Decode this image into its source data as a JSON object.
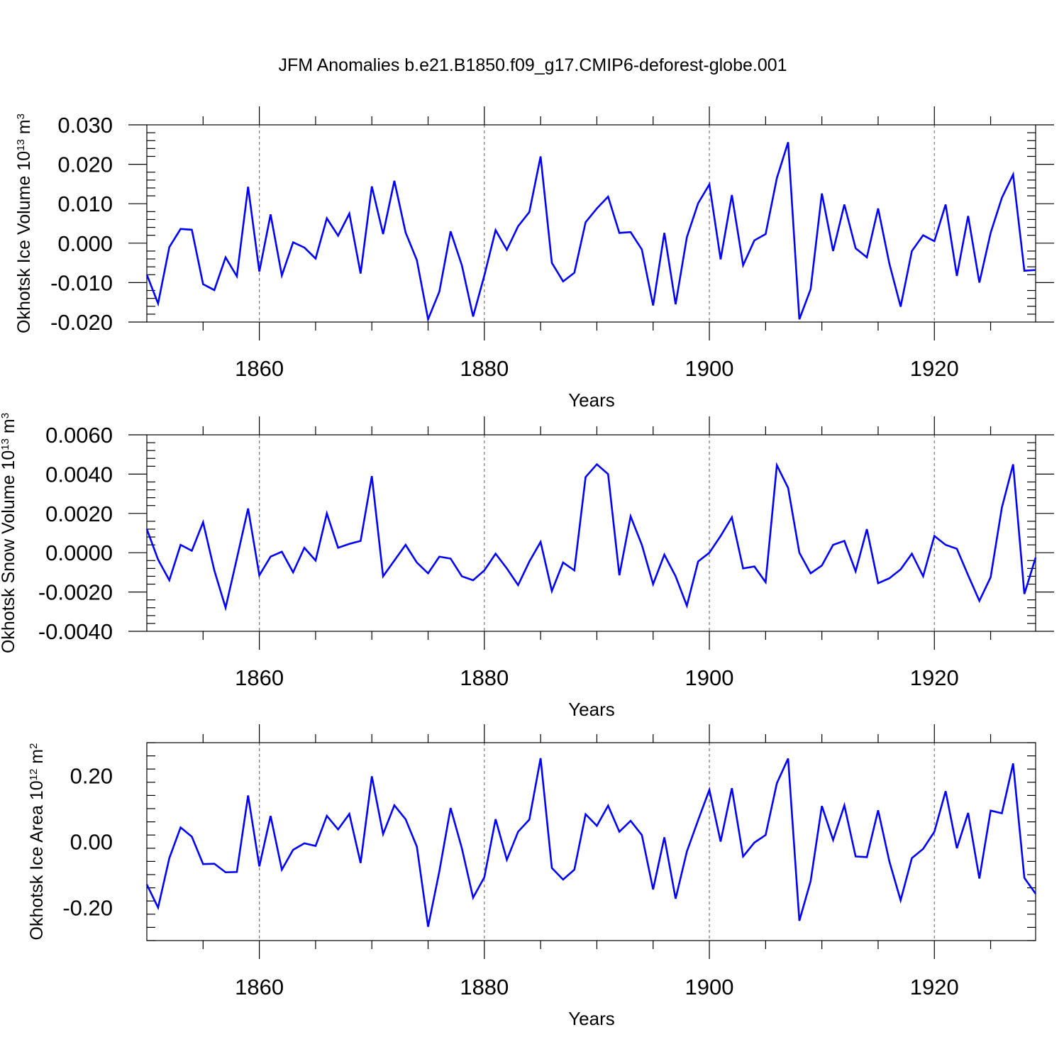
{
  "title": "JFM Anomalies b.e21.B1850.f09_g17.CMIP6-deforest-globe.001",
  "line_color": "#0000ff",
  "chart_data": [
    {
      "type": "line",
      "xlabel": "Years",
      "ylabel": {
        "base": "Okhotsk Ice Volume 10",
        "exp": "13",
        "unit": " m",
        "unit_exp": "3"
      },
      "xlim": [
        1850,
        1929
      ],
      "ylim": [
        -0.02,
        0.03
      ],
      "xticks": [
        1860,
        1880,
        1900,
        1920
      ],
      "xtick_labels": [
        "1860",
        "1880",
        "1900",
        "1920"
      ],
      "yticks": [
        -0.02,
        -0.01,
        0.0,
        0.01,
        0.02,
        0.03
      ],
      "ytick_labels": [
        "-0.020",
        "-0.010",
        "0.000",
        "0.010",
        "0.020",
        "0.030"
      ],
      "x_start": 1850,
      "values": [
        -0.008,
        -0.0153,
        -0.001,
        0.0036,
        0.0034,
        -0.0104,
        -0.0119,
        -0.0036,
        -0.0084,
        0.0143,
        -0.0072,
        0.0073,
        -0.0082,
        0.0002,
        -0.0011,
        -0.0039,
        0.0063,
        0.0019,
        0.0075,
        -0.0077,
        0.0144,
        0.0023,
        0.0158,
        0.0027,
        -0.0043,
        -0.0193,
        -0.0123,
        0.003,
        -0.0056,
        -0.0186,
        -0.0082,
        0.0033,
        -0.0017,
        0.0043,
        0.0079,
        0.022,
        -0.005,
        -0.0097,
        -0.0075,
        0.0053,
        0.0088,
        0.0118,
        0.0026,
        0.0028,
        -0.0016,
        -0.0158,
        0.0026,
        -0.0155,
        0.0015,
        0.0101,
        0.0149,
        -0.0041,
        0.0122,
        -0.0056,
        0.0007,
        0.0023,
        0.0165,
        0.0256,
        -0.0193,
        -0.0117,
        0.0126,
        -0.002,
        0.0098,
        -0.0013,
        -0.0036,
        0.0088,
        -0.0052,
        -0.0161,
        -0.002,
        0.002,
        0.0005,
        0.0098,
        -0.0083,
        0.0069,
        -0.01,
        0.0026,
        0.0115,
        0.0174,
        -0.007,
        -0.0068
      ]
    },
    {
      "type": "line",
      "xlabel": "Years",
      "ylabel": {
        "base": "Okhotsk Snow Volume 10",
        "exp": "13",
        "unit": " m",
        "unit_exp": "3"
      },
      "xlim": [
        1850,
        1929
      ],
      "ylim": [
        -0.004,
        0.006
      ],
      "xticks": [
        1860,
        1880,
        1900,
        1920
      ],
      "xtick_labels": [
        "1860",
        "1880",
        "1900",
        "1920"
      ],
      "yticks": [
        -0.004,
        -0.002,
        0.0,
        0.002,
        0.004,
        0.006
      ],
      "ytick_labels": [
        "-0.0040",
        "-0.0020",
        "0.0000",
        "0.0020",
        "0.0040",
        "0.0060"
      ],
      "x_start": 1850,
      "values": [
        0.0012,
        -0.00035,
        -0.0014,
        0.0004,
        0.0001,
        0.00155,
        -0.0009,
        -0.0028,
        -0.0003,
        0.00225,
        -0.00115,
        -0.0002,
        5e-05,
        -0.001,
        0.00025,
        -0.0004,
        0.002,
        0.00025,
        0.00045,
        0.0006,
        0.0039,
        -0.0012,
        -0.0004,
        0.0004,
        -0.0005,
        -0.00105,
        -0.0002,
        -0.0003,
        -0.0012,
        -0.0014,
        -0.0009,
        -5e-05,
        -0.0008,
        -0.00165,
        -0.00045,
        0.00055,
        -0.00195,
        -0.0005,
        -0.0009,
        0.00385,
        0.0045,
        0.004,
        -0.00115,
        0.00185,
        0.0004,
        -0.0016,
        -0.0001,
        -0.0012,
        -0.0027,
        -0.00045,
        0.0,
        0.00085,
        0.0018,
        -0.0008,
        -0.0007,
        -0.0015,
        0.00445,
        0.0033,
        0.0,
        -0.00105,
        -0.00065,
        0.0004,
        0.0006,
        -0.00095,
        0.0012,
        -0.00155,
        -0.0013,
        -0.00085,
        -5e-05,
        -0.0012,
        0.00085,
        0.0004,
        0.0002,
        -0.00115,
        -0.00245,
        -0.00125,
        0.0023,
        0.0045,
        -0.0021,
        -0.00025
      ]
    },
    {
      "type": "line",
      "xlabel": "Years",
      "ylabel": {
        "base": "Okhotsk Ice Area 10",
        "exp": "12",
        "unit": " m",
        "unit_exp": "2"
      },
      "xlim": [
        1850,
        1929
      ],
      "ylim": [
        -0.3,
        0.3
      ],
      "xticks": [
        1860,
        1880,
        1900,
        1920
      ],
      "xtick_labels": [
        "1860",
        "1880",
        "1900",
        "1920"
      ],
      "yticks": [
        -0.2,
        0.0,
        0.2
      ],
      "ytick_labels": [
        "-0.20",
        "0.00",
        "0.20"
      ],
      "x_start": 1850,
      "values": [
        -0.13,
        -0.2,
        -0.05,
        0.043,
        0.015,
        -0.068,
        -0.067,
        -0.093,
        -0.092,
        0.14,
        -0.075,
        0.078,
        -0.085,
        -0.025,
        -0.005,
        -0.013,
        0.078,
        0.037,
        0.084,
        -0.065,
        0.198,
        0.023,
        0.11,
        0.068,
        -0.015,
        -0.258,
        -0.09,
        0.102,
        -0.02,
        -0.17,
        -0.108,
        0.068,
        -0.055,
        0.03,
        0.067,
        0.253,
        -0.08,
        -0.115,
        -0.085,
        0.083,
        0.048,
        0.109,
        0.03,
        0.063,
        0.02,
        -0.145,
        0.013,
        -0.173,
        -0.03,
        0.065,
        0.157,
        0.0,
        0.162,
        -0.045,
        -0.003,
        0.02,
        0.177,
        0.252,
        -0.24,
        -0.12,
        0.108,
        0.005,
        0.11,
        -0.045,
        -0.047,
        0.095,
        -0.06,
        -0.178,
        -0.05,
        -0.022,
        0.03,
        0.153,
        -0.02,
        0.087,
        -0.112,
        0.094,
        0.086,
        0.237,
        -0.11,
        -0.158
      ]
    }
  ]
}
